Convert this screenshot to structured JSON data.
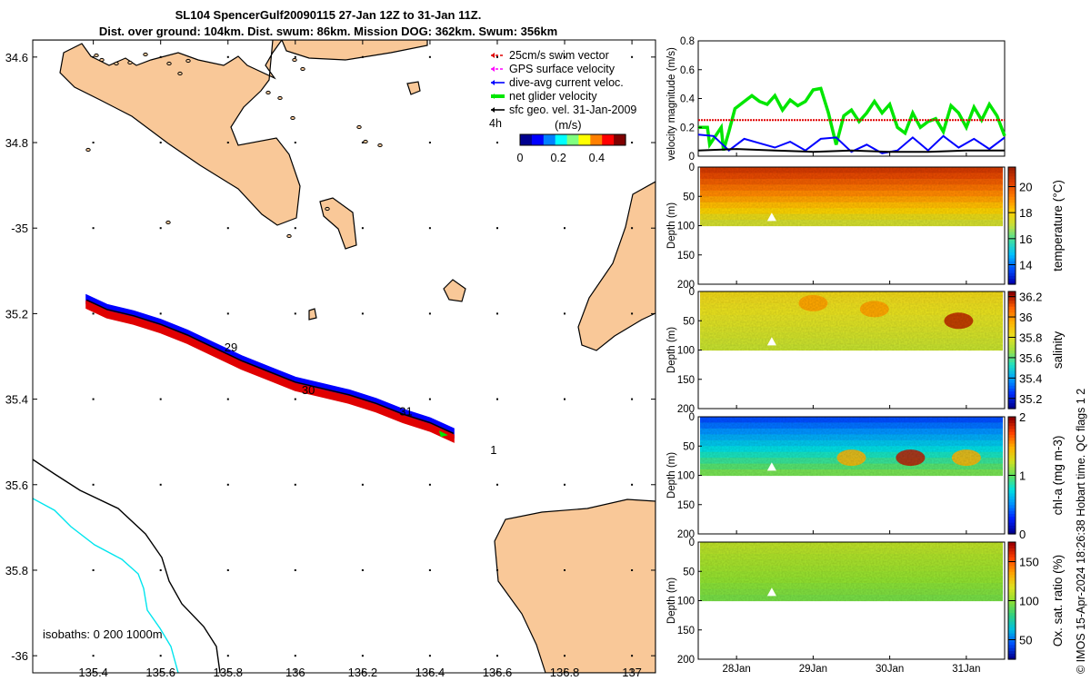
{
  "figure": {
    "title_line1": "SL104 SpencerGulf20090115 27-Jan 12Z to 31-Jan 11Z.",
    "title_line2": "Dist. over ground: 104km. Dist. swum: 86km. Mission DOG: 362km. Swum: 356km",
    "footer": "© IMOS 15-Apr-2024 18:26:38 Hobart time. QC flags 1  2"
  },
  "colors": {
    "land": "#f9c898",
    "coast": "#000000",
    "isobath_200": "#000000",
    "isobath_1000": "#00e5ee",
    "swim_vector": "#e00000",
    "gps_surface": "#ff00ff",
    "dive_avg": "#0000ff",
    "net_glider": "#00e600",
    "sfc_geo": "#000000"
  },
  "chart_data": [
    {
      "type": "scatter",
      "panel": "map",
      "xlim": [
        135.22,
        137.07
      ],
      "ylim": [
        -36.04,
        -34.56
      ],
      "xticks": [
        135.4,
        135.6,
        135.8,
        136,
        136.2,
        136.4,
        136.6,
        136.8,
        137
      ],
      "xtick_labels": [
        "135.4",
        "135.6",
        "135.8",
        "136",
        "136.2",
        "136.4",
        "136.6",
        "136.8",
        "137"
      ],
      "yticks": [
        -34.6,
        -34.8,
        -35,
        -35.2,
        -35.4,
        -35.6,
        -35.8,
        -36
      ],
      "ytick_labels": [
        "34.6",
        "34.8",
        "-35",
        "35.2",
        "35.4",
        "35.6",
        "35.8",
        "-36"
      ],
      "legend": {
        "placement": "top-right",
        "entries": [
          "25cm/s swim vector",
          "GPS surface velocity",
          "dive-avg current veloc.",
          "net glider velocity",
          "sfc geo. vel. 31-Jan-2009"
        ],
        "note": "4h"
      },
      "colorbar": {
        "label": "(m/s)",
        "ticks": [
          "0",
          "0.2",
          "0.4"
        ],
        "range": [
          0,
          0.55
        ]
      },
      "isobath_label": "isobaths: 0   200  1000m",
      "track": {
        "lon": [
          135.38,
          135.44,
          135.52,
          135.6,
          135.68,
          135.76,
          135.84,
          135.92,
          136.0,
          136.08,
          136.16,
          136.24,
          136.32,
          136.4,
          136.47
        ],
        "lat": [
          -35.168,
          -35.19,
          -35.205,
          -35.225,
          -35.25,
          -35.28,
          -35.31,
          -35.335,
          -35.36,
          -35.375,
          -35.39,
          -35.41,
          -35.435,
          -35.455,
          -35.48
        ]
      },
      "day_labels": [
        {
          "text": "29",
          "lon": 135.8,
          "lat": -35.28
        },
        {
          "text": "30",
          "lon": 136.03,
          "lat": -35.38
        },
        {
          "text": "31",
          "lon": 136.32,
          "lat": -35.43
        },
        {
          "text": "1",
          "lon": 136.59,
          "lat": -35.52
        }
      ]
    },
    {
      "type": "line",
      "panel": "velocity",
      "ylabel": "velocity magnitude (m/s)",
      "xlim": [
        27.5,
        31.5
      ],
      "ylim": [
        0,
        0.8
      ],
      "yticks": [
        "0",
        "0.2",
        "0.4",
        "0.6",
        "0.8"
      ],
      "series": [
        {
          "key": "net_glider",
          "x": [
            27.5,
            27.62,
            27.65,
            27.8,
            27.83,
            27.9,
            27.98,
            28.1,
            28.2,
            28.3,
            28.4,
            28.5,
            28.6,
            28.7,
            28.8,
            28.9,
            29.0,
            29.1,
            29.2,
            29.3,
            29.4,
            29.5,
            29.6,
            29.7,
            29.8,
            29.9,
            30.0,
            30.1,
            30.2,
            30.3,
            30.4,
            30.5,
            30.6,
            30.7,
            30.8,
            30.9,
            31.0,
            31.1,
            31.2,
            31.3,
            31.4,
            31.5
          ],
          "values": [
            0.2,
            0.2,
            0.08,
            0.2,
            0.04,
            0.17,
            0.33,
            0.38,
            0.42,
            0.38,
            0.36,
            0.42,
            0.32,
            0.39,
            0.35,
            0.38,
            0.46,
            0.47,
            0.3,
            0.08,
            0.28,
            0.32,
            0.24,
            0.3,
            0.38,
            0.3,
            0.36,
            0.2,
            0.16,
            0.3,
            0.2,
            0.24,
            0.26,
            0.17,
            0.35,
            0.3,
            0.2,
            0.34,
            0.25,
            0.36,
            0.28,
            0.14
          ]
        },
        {
          "key": "swim_vector",
          "x": [
            27.5,
            31.5
          ],
          "values": [
            0.25,
            0.25
          ]
        },
        {
          "key": "dive_avg",
          "x": [
            27.5,
            27.7,
            27.9,
            28.1,
            28.3,
            28.5,
            28.7,
            28.9,
            29.1,
            29.3,
            29.5,
            29.7,
            29.9,
            30.1,
            30.3,
            30.5,
            30.7,
            30.9,
            31.1,
            31.3,
            31.5
          ],
          "values": [
            0.15,
            0.14,
            0.04,
            0.12,
            0.09,
            0.06,
            0.1,
            0.04,
            0.12,
            0.13,
            0.03,
            0.08,
            0.02,
            0.04,
            0.13,
            0.04,
            0.14,
            0.06,
            0.12,
            0.05,
            0.13
          ]
        },
        {
          "key": "sfc_geo",
          "x": [
            27.5,
            28.0,
            28.5,
            29.0,
            29.5,
            30.0,
            30.5,
            31.0,
            31.5
          ],
          "values": [
            0.04,
            0.05,
            0.04,
            0.03,
            0.04,
            0.03,
            0.03,
            0.04,
            0.04
          ]
        }
      ]
    },
    {
      "type": "heatmap",
      "panel": "temperature",
      "ylabel": "Depth (m)",
      "cbar_label": "temperature (°C)",
      "ylim": [
        200,
        0
      ],
      "yticks": [
        "0",
        "50",
        "100",
        "150",
        "200"
      ],
      "cbar_range": [
        12.5,
        21.5
      ],
      "cbar_ticks": [
        "14",
        "16",
        "18",
        "20"
      ],
      "surface_value": 20.6,
      "bottom_value": 17.3,
      "hotspots": []
    },
    {
      "type": "heatmap",
      "panel": "salinity",
      "ylabel": "Depth (m)",
      "cbar_label": "salinity",
      "ylim": [
        200,
        0
      ],
      "yticks": [
        "0",
        "50",
        "100",
        "150",
        "200"
      ],
      "cbar_range": [
        35.1,
        36.25
      ],
      "cbar_ticks": [
        "35.2",
        "35.4",
        "35.6",
        "35.8",
        "36",
        "36.2"
      ],
      "surface_value": 35.85,
      "bottom_value": 35.75,
      "hotspots": [
        {
          "x": 30.9,
          "depth": 50,
          "value": 36.2
        },
        {
          "x": 29.0,
          "depth": 20,
          "value": 36.0
        },
        {
          "x": 29.8,
          "depth": 30,
          "value": 36.0
        }
      ]
    },
    {
      "type": "heatmap",
      "panel": "chl",
      "ylabel": "Depth (m)",
      "cbar_label": "chl-a (mg m-3)",
      "ylim": [
        200,
        0
      ],
      "yticks": [
        "0",
        "50",
        "100",
        "150",
        "200"
      ],
      "cbar_range": [
        0,
        2
      ],
      "cbar_ticks": [
        "0",
        "1",
        "2"
      ],
      "surface_value": 0.35,
      "bottom_value": 1.05,
      "hotspots": [
        {
          "x": 30.27,
          "depth": 70,
          "value": 1.9
        },
        {
          "x": 29.5,
          "depth": 70,
          "value": 1.5
        },
        {
          "x": 31.0,
          "depth": 70,
          "value": 1.5
        }
      ]
    },
    {
      "type": "heatmap",
      "panel": "oxygen",
      "ylabel": "Depth (m)",
      "cbar_label": "Ox. sat. ratio (%)",
      "ylim": [
        200,
        0
      ],
      "yticks": [
        "0",
        "50",
        "100",
        "150",
        "200"
      ],
      "cbar_range": [
        25,
        175
      ],
      "cbar_ticks": [
        "50",
        "100",
        "150"
      ],
      "surface_value": 110,
      "bottom_value": 95,
      "hotspots": []
    },
    {
      "type": "axis",
      "panel": "time",
      "xlim": [
        27.5,
        31.5
      ],
      "xticks": [
        28,
        29,
        30,
        31
      ],
      "xtick_labels": [
        "28Jan",
        "29Jan",
        "30Jan",
        "31Jan"
      ]
    }
  ]
}
